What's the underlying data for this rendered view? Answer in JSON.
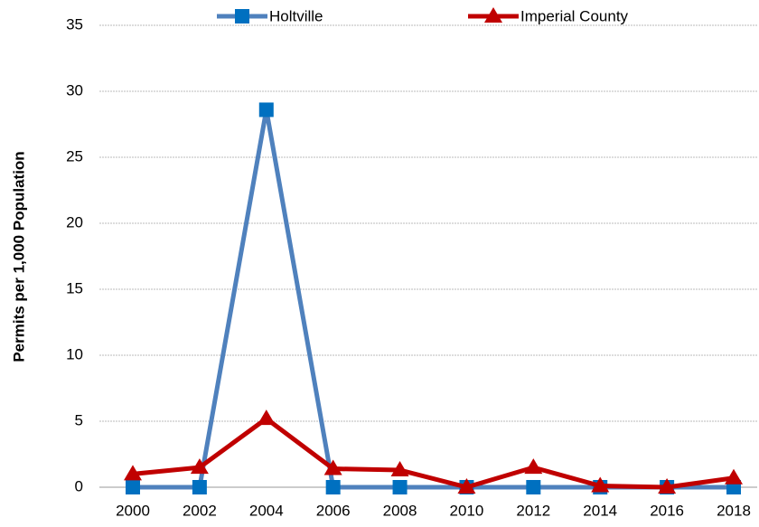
{
  "chart_data": {
    "type": "line",
    "y_label": "Permits per 1,000 Population",
    "categories": [
      "2000",
      "2002",
      "2004",
      "2006",
      "2008",
      "2010",
      "2012",
      "2014",
      "2016",
      "2018"
    ],
    "series": [
      {
        "name": "Holtville",
        "color": "#4f81bd",
        "marker_color": "#0070c0",
        "marker": "square",
        "values": [
          0,
          0,
          28.6,
          0,
          0,
          0,
          0,
          0,
          0,
          0
        ]
      },
      {
        "name": "Imperial County",
        "color": "#c00000",
        "marker_color": "#c00000",
        "marker": "triangle",
        "values": [
          1.0,
          1.5,
          5.2,
          1.4,
          1.3,
          0,
          1.5,
          0.1,
          0,
          0.7
        ]
      }
    ],
    "ylim": [
      0,
      35
    ],
    "yticks": [
      0,
      5,
      10,
      15,
      20,
      25,
      30,
      35
    ],
    "grid": true,
    "legend": "top"
  }
}
